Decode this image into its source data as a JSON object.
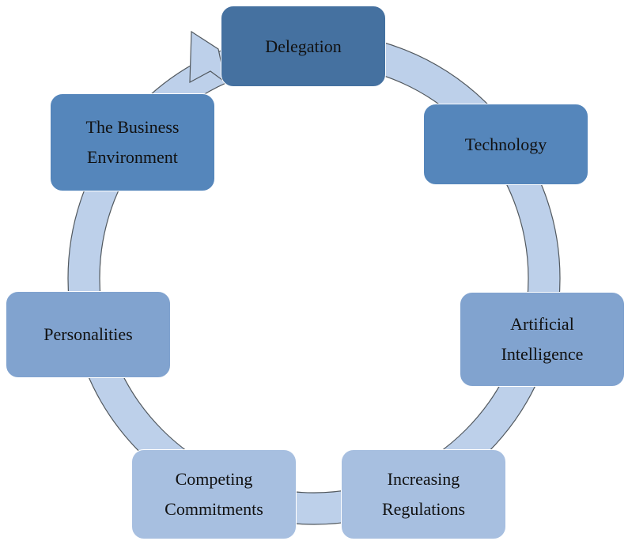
{
  "cycle": {
    "nodes": [
      {
        "label": "Delegation",
        "color": "#4571a0"
      },
      {
        "label": "Technology",
        "color": "#5586bb"
      },
      {
        "label": "Artificial\nIntelligence",
        "color": "#81a3cf"
      },
      {
        "label": "Increasing\nRegulations",
        "color": "#a7bfe0"
      },
      {
        "label": "Competing\nCommitments",
        "color": "#a7bfe0"
      },
      {
        "label": "Personalities",
        "color": "#81a3cf"
      },
      {
        "label": "The Business\nEnvironment",
        "color": "#5586bb"
      }
    ],
    "ring_color": "#bdd0ea",
    "ring_outline": "#52595f",
    "arrow_direction": "clockwise"
  }
}
